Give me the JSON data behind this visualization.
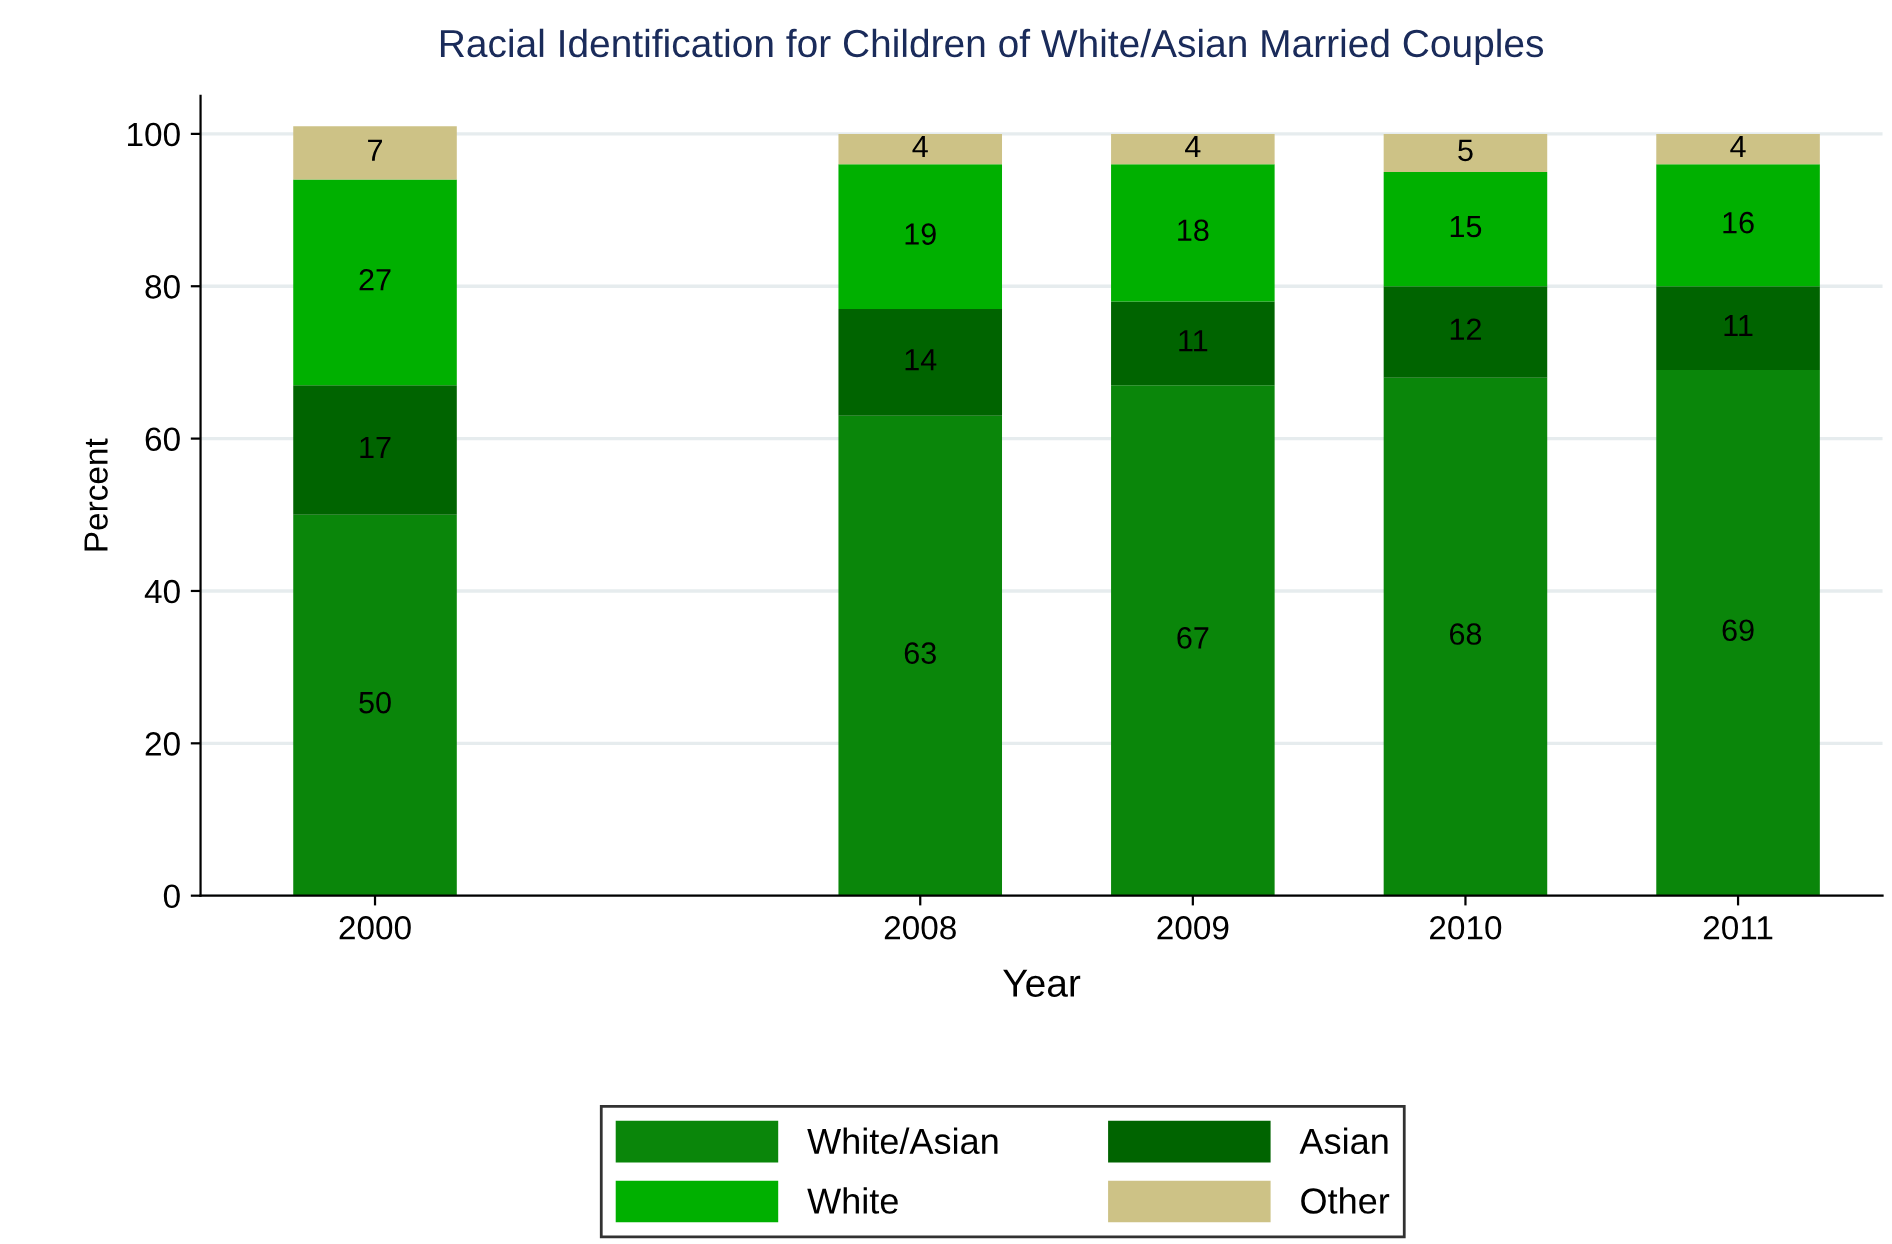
{
  "chart_data": {
    "type": "bar",
    "stacked": true,
    "title": "Racial Identification for Children of White/Asian Married Couples",
    "xlabel": "Year",
    "ylabel": "Percent",
    "categories": [
      "2000",
      null,
      "2008",
      "2009",
      "2010",
      "2011"
    ],
    "series": [
      {
        "name": "White/Asian",
        "color": "#0a860a",
        "values": [
          50,
          null,
          63,
          67,
          68,
          69
        ]
      },
      {
        "name": "Asian",
        "color": "#006400",
        "values": [
          17,
          null,
          14,
          11,
          12,
          11
        ]
      },
      {
        "name": "White",
        "color": "#00b000",
        "values": [
          27,
          null,
          19,
          18,
          15,
          16
        ]
      },
      {
        "name": "Other",
        "color": "#cdc286",
        "values": [
          7,
          null,
          4,
          4,
          5,
          4
        ]
      }
    ],
    "ylim": [
      0,
      105
    ],
    "yticks": [
      0,
      20,
      40,
      60,
      80,
      100
    ],
    "grid": "y",
    "legend": "bottom",
    "data_labels": true
  }
}
